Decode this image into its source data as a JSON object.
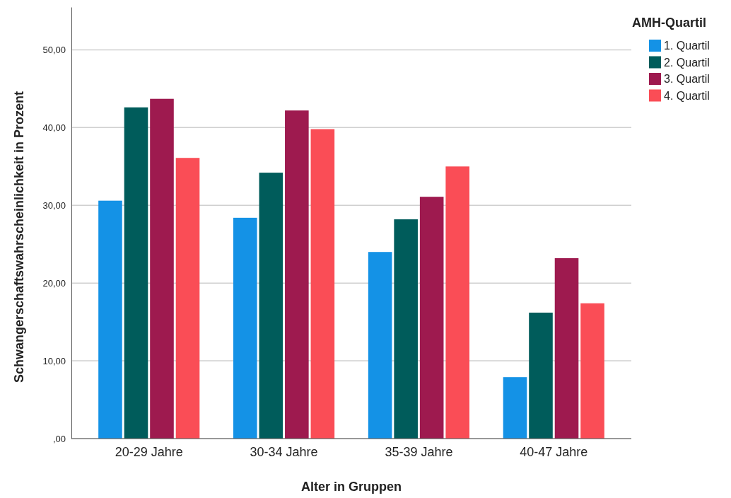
{
  "chart_data": {
    "type": "bar",
    "xlabel": "Alter in Gruppen",
    "ylabel": "Schwangerschaftswahrscheinlichkeit in Prozent",
    "legend_title": "AMH-Quartil",
    "categories": [
      "20-29 Jahre",
      "30-34 Jahre",
      "35-39 Jahre",
      "40-47 Jahre"
    ],
    "series": [
      {
        "name": "1. Quartil",
        "color": "#1492e6",
        "values": [
          30.6,
          28.4,
          24.0,
          7.9
        ]
      },
      {
        "name": "2. Quartil",
        "color": "#005c5b",
        "values": [
          42.6,
          34.2,
          28.2,
          16.2
        ]
      },
      {
        "name": "3. Quartil",
        "color": "#9e1a4f",
        "values": [
          43.7,
          42.2,
          31.1,
          23.2
        ]
      },
      {
        "name": "4. Quartil",
        "color": "#fa4d56",
        "values": [
          36.1,
          39.8,
          35.0,
          17.4
        ]
      }
    ],
    "ylim": [
      0,
      55.5
    ],
    "yticks": [
      {
        "value": 0,
        "label": ",00"
      },
      {
        "value": 10,
        "label": "10,00"
      },
      {
        "value": 20,
        "label": "20,00"
      },
      {
        "value": 30,
        "label": "30,00"
      },
      {
        "value": 40,
        "label": "40,00"
      },
      {
        "value": 50,
        "label": "50,00"
      }
    ],
    "grid": "y",
    "legend": "top right"
  }
}
